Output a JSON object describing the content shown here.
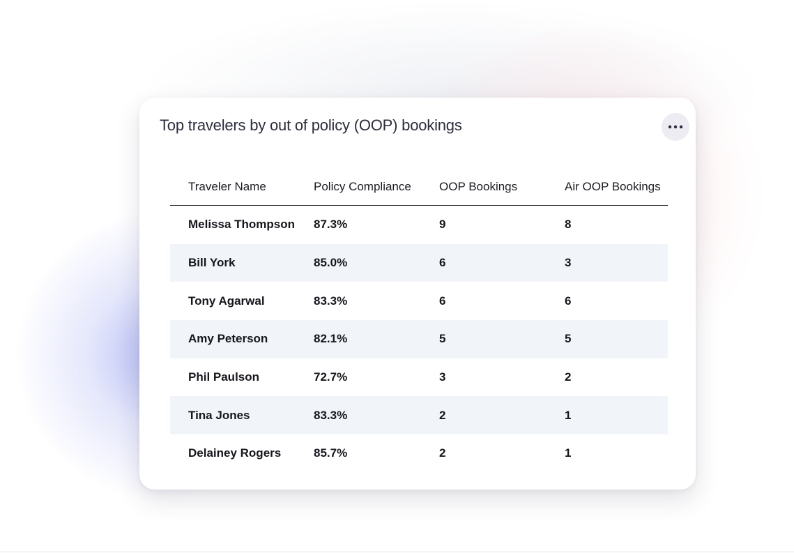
{
  "card": {
    "title": "Top travelers by out of policy (OOP) bookings",
    "more_icon": "ellipsis-horizontal-icon"
  },
  "table": {
    "columns": [
      "Traveler Name",
      "Policy Compliance",
      "OOP Bookings",
      "Air OOP Bookings"
    ],
    "rows": [
      {
        "name": "Melissa Thompson",
        "compliance": "87.3%",
        "oop": "9",
        "air_oop": "8"
      },
      {
        "name": "Bill York",
        "compliance": "85.0%",
        "oop": "6",
        "air_oop": "3"
      },
      {
        "name": "Tony Agarwal",
        "compliance": "83.3%",
        "oop": "6",
        "air_oop": "6"
      },
      {
        "name": "Amy Peterson",
        "compliance": "82.1%",
        "oop": "5",
        "air_oop": "5"
      },
      {
        "name": "Phil Paulson",
        "compliance": "72.7%",
        "oop": "3",
        "air_oop": "2"
      },
      {
        "name": "Tina Jones",
        "compliance": "83.3%",
        "oop": "2",
        "air_oop": "1"
      },
      {
        "name": "Delainey Rogers",
        "compliance": "85.7%",
        "oop": "2",
        "air_oop": "1"
      }
    ]
  },
  "colors": {
    "stripe": "#f1f5f9",
    "more_button_bg": "#ececf2",
    "title_text": "#2b2d3c"
  }
}
